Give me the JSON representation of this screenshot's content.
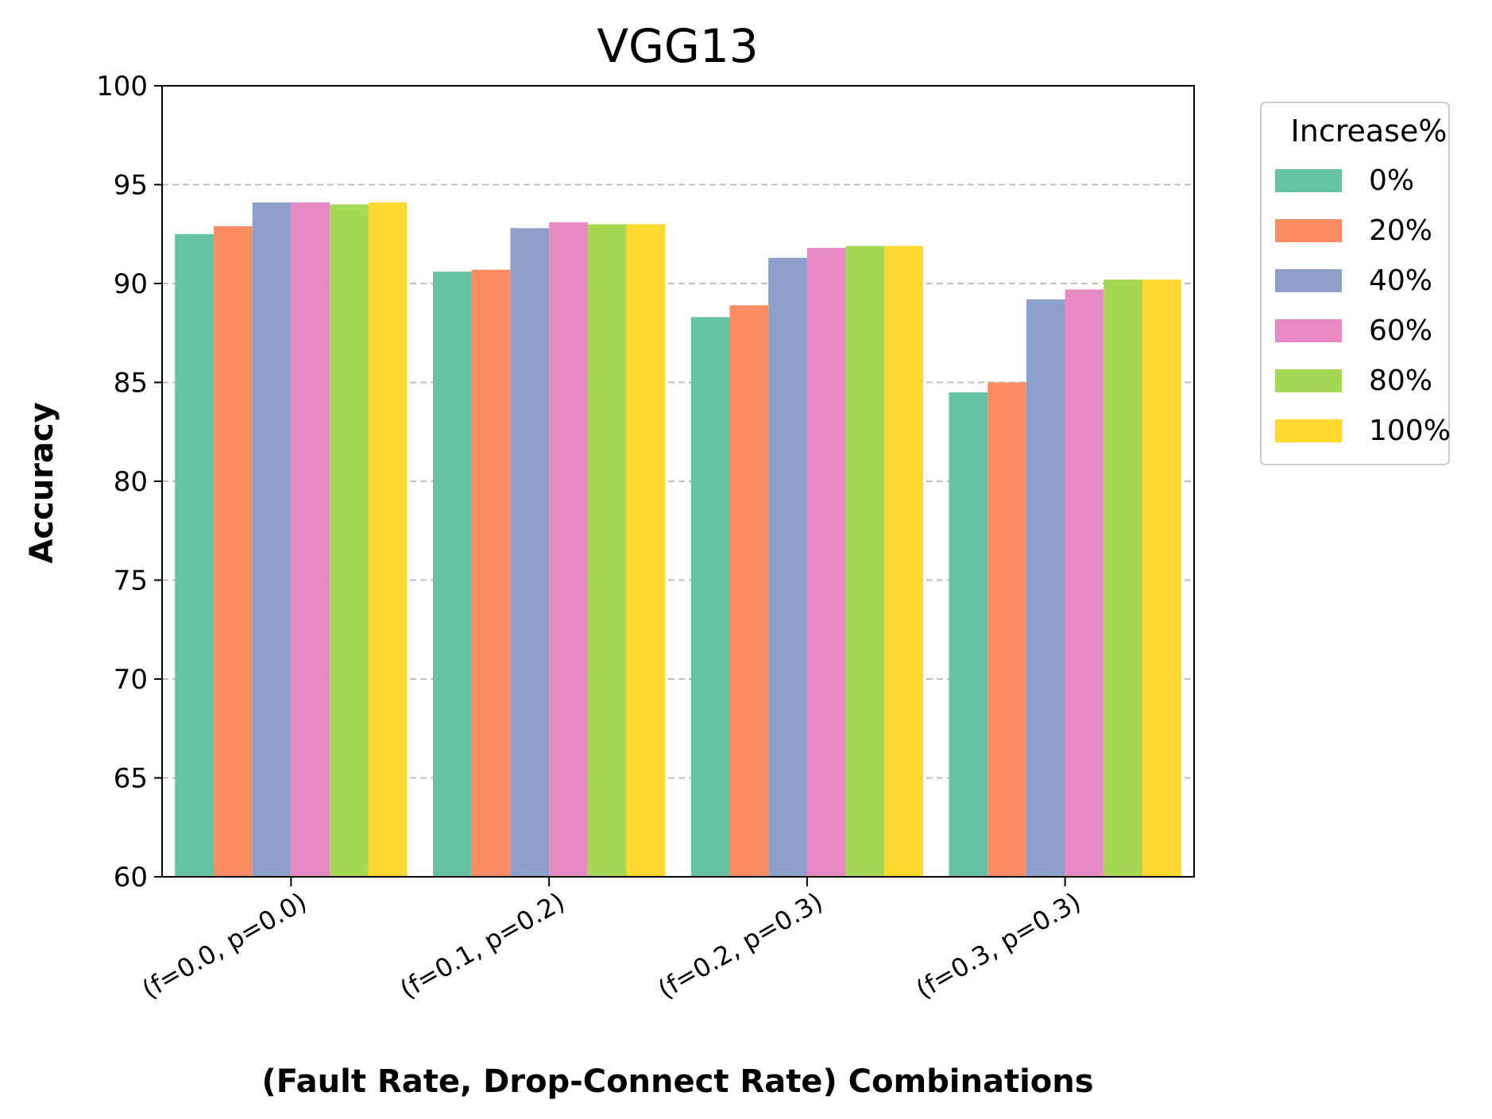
{
  "chart_data": {
    "type": "bar",
    "title": "VGG13",
    "xlabel": "(Fault Rate, Drop-Connect Rate) Combinations",
    "ylabel": "Accuracy",
    "ylim": [
      60,
      100
    ],
    "yticks": [
      60,
      65,
      70,
      75,
      80,
      85,
      90,
      95,
      100
    ],
    "grid": "y-dashed",
    "categories": [
      "(f=0.0, p=0.0)",
      "(f=0.1, p=0.2)",
      "(f=0.2, p=0.3)",
      "(f=0.3, p=0.3)"
    ],
    "legend": {
      "title": "Increase%",
      "placement": "outside-right-top"
    },
    "series": [
      {
        "name": "0%",
        "color": "#66c2a5",
        "values": [
          92.5,
          90.6,
          88.3,
          84.5
        ]
      },
      {
        "name": "20%",
        "color": "#fc8d62",
        "values": [
          92.9,
          90.7,
          88.9,
          85.0
        ]
      },
      {
        "name": "40%",
        "color": "#8da0cb",
        "values": [
          94.1,
          92.8,
          91.3,
          89.2
        ]
      },
      {
        "name": "60%",
        "color": "#e78ac3",
        "values": [
          94.1,
          93.1,
          91.8,
          89.7
        ]
      },
      {
        "name": "80%",
        "color": "#a6d854",
        "values": [
          94.0,
          93.0,
          91.9,
          90.2
        ]
      },
      {
        "name": "100%",
        "color": "#ffd92f",
        "values": [
          94.1,
          93.0,
          91.9,
          90.2
        ]
      }
    ]
  }
}
